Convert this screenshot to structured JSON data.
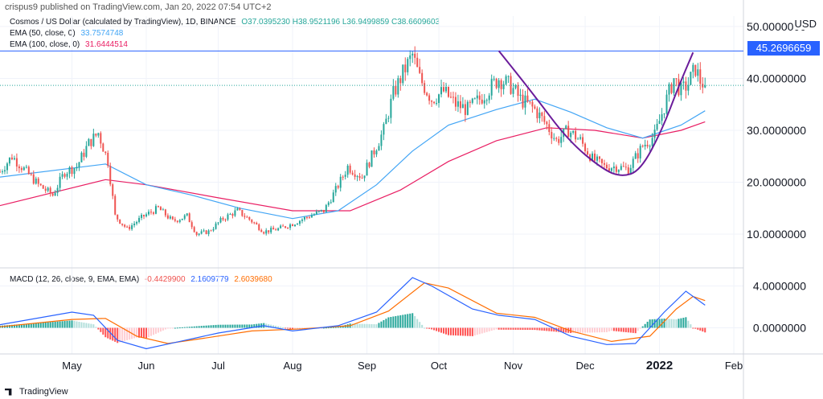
{
  "header": {
    "published": "crispus9 published on TradingView.com, Jan 20, 2022 07:54 UTC+2",
    "symbol": "Cosmos / US Dollar (calculated by TradingView), 1D, BINANCE",
    "ohlc": "O37.0395230 H38.9521196 L36.9499859 C38.6609603",
    "ema50_label": "EMA (50, close, 0)",
    "ema50_value": "33.7574748",
    "ema100_label": "EMA (100, close, 0)",
    "ema100_value": "31.6444514",
    "macd_label": "MACD (12, 26, close, 9, EMA, EMA)",
    "macd_hist": "-0.4429900",
    "macd_line": "2.1609779",
    "macd_signal": "2.6039680",
    "currency": "USD",
    "price_tag": "45.2696659"
  },
  "colors": {
    "up": "#26a69a",
    "down": "#ef5350",
    "ema50": "#42a5f5",
    "ema100": "#e91e63",
    "macd": "#2962ff",
    "signal": "#ff6d00",
    "hist_up_strong": "#26a69a",
    "hist_up_weak": "#b2dfdb",
    "hist_down_strong": "#ff5252",
    "hist_down_weak": "#ffcdd2",
    "resistance": "#2962ff",
    "cup": "#6a1b9a",
    "grid": "#f0f3fa",
    "axis_text": "#131722"
  },
  "footer": {
    "brand": "TradingView"
  },
  "chart_data": {
    "type": "candlestick",
    "x_ticks": [
      "May",
      "Jun",
      "Jul",
      "Aug",
      "Sep",
      "Oct",
      "Nov",
      "Dec",
      "2022",
      "Feb"
    ],
    "price_ticks": [
      "10.0000000",
      "20.0000000",
      "30.0000000",
      "40.0000000",
      "50.0000000"
    ],
    "price_range": [
      3.5,
      52
    ],
    "macd_ticks": [
      "0.0000000",
      "4.0000000"
    ],
    "macd_range": [
      -2.5,
      5.5
    ],
    "resistance": 45.27,
    "current": 38.66,
    "cup": [
      {
        "date": "2021-10-26",
        "price": 45.3
      },
      {
        "date": "2021-11-09",
        "price": 37.2
      },
      {
        "date": "2021-11-24",
        "price": 28.0
      },
      {
        "date": "2021-12-08",
        "price": 22.6
      },
      {
        "date": "2021-12-16",
        "price": 21.0
      },
      {
        "date": "2021-12-24",
        "price": 22.2
      },
      {
        "date": "2022-01-02",
        "price": 30.0
      },
      {
        "date": "2022-01-09",
        "price": 38.5
      },
      {
        "date": "2022-01-15",
        "price": 45.0
      }
    ],
    "price_path": [
      [
        "2021-04-01",
        22.0
      ],
      [
        "2021-04-06",
        25.0
      ],
      [
        "2021-04-11",
        22.5
      ],
      [
        "2021-04-17",
        19.5
      ],
      [
        "2021-04-23",
        17.5
      ],
      [
        "2021-04-28",
        22.0
      ],
      [
        "2021-05-03",
        23.0
      ],
      [
        "2021-05-08",
        27.5
      ],
      [
        "2021-05-12",
        29.5
      ],
      [
        "2021-05-16",
        24.0
      ],
      [
        "2021-05-19",
        13.5
      ],
      [
        "2021-05-24",
        11.0
      ],
      [
        "2021-05-31",
        13.5
      ],
      [
        "2021-06-06",
        15.0
      ],
      [
        "2021-06-12",
        12.5
      ],
      [
        "2021-06-18",
        13.5
      ],
      [
        "2021-06-22",
        10.0
      ],
      [
        "2021-06-27",
        10.5
      ],
      [
        "2021-07-03",
        13.0
      ],
      [
        "2021-07-09",
        14.5
      ],
      [
        "2021-07-15",
        12.5
      ],
      [
        "2021-07-20",
        10.5
      ],
      [
        "2021-07-26",
        11.0
      ],
      [
        "2021-08-01",
        12.0
      ],
      [
        "2021-08-08",
        13.5
      ],
      [
        "2021-08-14",
        14.5
      ],
      [
        "2021-08-19",
        18.5
      ],
      [
        "2021-08-24",
        23.0
      ],
      [
        "2021-08-30",
        21.0
      ],
      [
        "2021-09-03",
        25.0
      ],
      [
        "2021-09-08",
        30.0
      ],
      [
        "2021-09-12",
        37.0
      ],
      [
        "2021-09-16",
        41.0
      ],
      [
        "2021-09-20",
        44.5
      ],
      [
        "2021-09-23",
        40.0
      ],
      [
        "2021-09-28",
        36.0
      ],
      [
        "2021-10-03",
        37.5
      ],
      [
        "2021-10-08",
        35.0
      ],
      [
        "2021-10-13",
        34.0
      ],
      [
        "2021-10-18",
        36.0
      ],
      [
        "2021-10-22",
        38.0
      ],
      [
        "2021-10-26",
        40.0
      ],
      [
        "2021-10-31",
        38.5
      ],
      [
        "2021-11-04",
        36.0
      ],
      [
        "2021-11-10",
        34.0
      ],
      [
        "2021-11-15",
        31.0
      ],
      [
        "2021-11-19",
        28.0
      ],
      [
        "2021-11-24",
        30.0
      ],
      [
        "2021-11-29",
        28.0
      ],
      [
        "2021-12-04",
        24.5
      ],
      [
        "2021-12-09",
        23.0
      ],
      [
        "2021-12-14",
        23.0
      ],
      [
        "2021-12-19",
        22.5
      ],
      [
        "2021-12-25",
        27.0
      ],
      [
        "2021-12-30",
        29.0
      ],
      [
        "2022-01-04",
        36.0
      ],
      [
        "2022-01-07",
        40.0
      ],
      [
        "2022-01-10",
        37.5
      ],
      [
        "2022-01-13",
        39.0
      ],
      [
        "2022-01-16",
        42.0
      ],
      [
        "2022-01-18",
        39.5
      ],
      [
        "2022-01-20",
        38.7
      ]
    ],
    "ema50": [
      [
        "2021-04-01",
        21.0
      ],
      [
        "2021-05-15",
        23.5
      ],
      [
        "2021-06-01",
        19.5
      ],
      [
        "2021-06-20",
        17.5
      ],
      [
        "2021-07-10",
        15.0
      ],
      [
        "2021-08-01",
        13.0
      ],
      [
        "2021-08-20",
        14.5
      ],
      [
        "2021-09-05",
        19.5
      ],
      [
        "2021-09-20",
        26.0
      ],
      [
        "2021-10-05",
        31.0
      ],
      [
        "2021-10-25",
        34.0
      ],
      [
        "2021-11-10",
        36.0
      ],
      [
        "2021-11-25",
        33.5
      ],
      [
        "2021-12-10",
        30.5
      ],
      [
        "2021-12-25",
        28.5
      ],
      [
        "2022-01-10",
        31.0
      ],
      [
        "2022-01-20",
        33.76
      ]
    ],
    "ema100": [
      [
        "2021-04-01",
        15.5
      ],
      [
        "2021-05-15",
        20.5
      ],
      [
        "2021-06-01",
        19.5
      ],
      [
        "2021-07-01",
        17.0
      ],
      [
        "2021-08-01",
        14.5
      ],
      [
        "2021-08-25",
        14.5
      ],
      [
        "2021-09-15",
        18.5
      ],
      [
        "2021-10-05",
        24.0
      ],
      [
        "2021-10-25",
        28.0
      ],
      [
        "2021-11-15",
        30.5
      ],
      [
        "2021-12-05",
        30.0
      ],
      [
        "2021-12-25",
        28.5
      ],
      [
        "2022-01-10",
        30.0
      ],
      [
        "2022-01-20",
        31.64
      ]
    ],
    "macd_path": [
      [
        "2021-04-01",
        0.3
      ],
      [
        "2021-05-01",
        1.5
      ],
      [
        "2021-05-10",
        1.2
      ],
      [
        "2021-05-20",
        -1.2
      ],
      [
        "2021-06-01",
        -2.0
      ],
      [
        "2021-06-15",
        -1.3
      ],
      [
        "2021-07-01",
        -0.5
      ],
      [
        "2021-07-20",
        0.2
      ],
      [
        "2021-08-01",
        -0.3
      ],
      [
        "2021-08-20",
        0.2
      ],
      [
        "2021-09-05",
        1.5
      ],
      [
        "2021-09-20",
        4.8
      ],
      [
        "2021-09-28",
        4.0
      ],
      [
        "2021-10-15",
        1.8
      ],
      [
        "2021-10-26",
        1.2
      ],
      [
        "2021-11-10",
        0.8
      ],
      [
        "2021-11-25",
        -0.8
      ],
      [
        "2021-12-10",
        -1.6
      ],
      [
        "2021-12-22",
        -1.5
      ],
      [
        "2022-01-03",
        1.5
      ],
      [
        "2022-01-12",
        3.5
      ],
      [
        "2022-01-20",
        2.16
      ]
    ],
    "signal_path": [
      [
        "2021-04-01",
        0.1
      ],
      [
        "2021-05-01",
        0.8
      ],
      [
        "2021-05-15",
        0.9
      ],
      [
        "2021-05-28",
        -0.8
      ],
      [
        "2021-06-10",
        -1.5
      ],
      [
        "2021-06-25",
        -1.0
      ],
      [
        "2021-07-15",
        -0.3
      ],
      [
        "2021-08-05",
        -0.1
      ],
      [
        "2021-08-25",
        0.2
      ],
      [
        "2021-09-10",
        1.6
      ],
      [
        "2021-09-25",
        4.3
      ],
      [
        "2021-10-05",
        3.8
      ],
      [
        "2021-10-25",
        1.4
      ],
      [
        "2021-11-10",
        1.0
      ],
      [
        "2021-11-25",
        -0.3
      ],
      [
        "2021-12-12",
        -1.3
      ],
      [
        "2021-12-28",
        -0.8
      ],
      [
        "2022-01-08",
        1.8
      ],
      [
        "2022-01-15",
        3.0
      ],
      [
        "2022-01-20",
        2.6
      ]
    ]
  }
}
